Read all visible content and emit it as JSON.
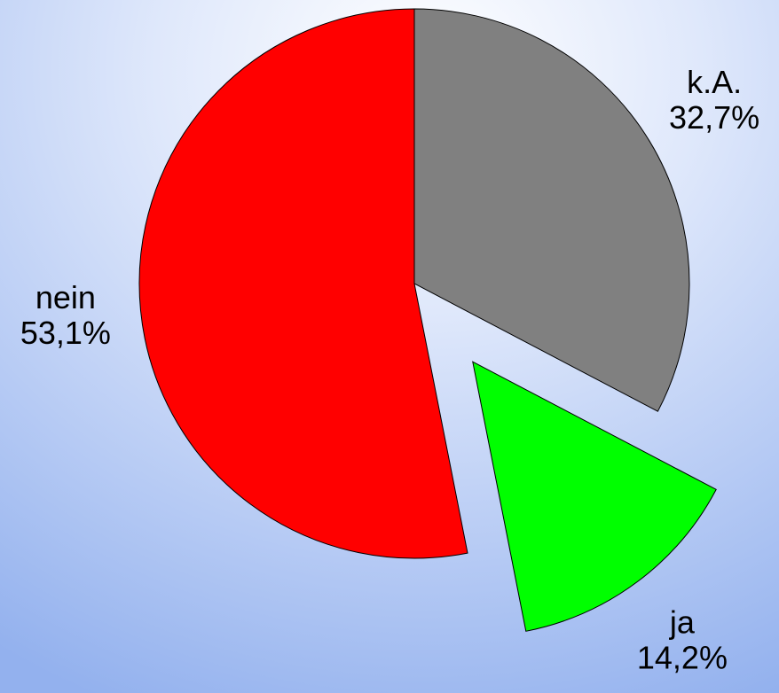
{
  "chart_data": {
    "type": "pie",
    "categories": [
      "k.A.",
      "ja",
      "nein"
    ],
    "values": [
      32.7,
      14.2,
      53.1
    ],
    "value_labels": [
      "32,7%",
      "14,2%",
      "53,1%"
    ],
    "colors": [
      "#808080",
      "#00ff00",
      "#ff0000"
    ],
    "exploded": [
      false,
      true,
      false
    ]
  }
}
